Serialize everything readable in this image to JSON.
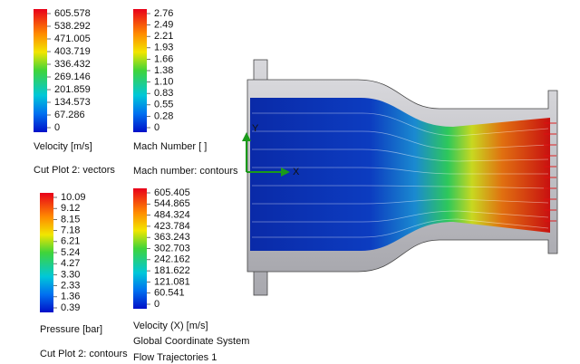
{
  "legends": [
    {
      "title": "Velocity [m/s]",
      "captions": [
        "Cut Plot 2: vectors"
      ],
      "ticks": [
        "605.578",
        "538.292",
        "471.005",
        "403.719",
        "336.432",
        "269.146",
        "201.859",
        "134.573",
        "67.286",
        "0"
      ]
    },
    {
      "title": "Mach Number [ ]",
      "captions": [
        "Mach number: contours"
      ],
      "ticks": [
        "2.76",
        "2.49",
        "2.21",
        "1.93",
        "1.66",
        "1.38",
        "1.10",
        "0.83",
        "0.55",
        "0.28",
        "0"
      ]
    },
    {
      "title": "Pressure [bar]",
      "captions": [
        "Cut Plot 2: contours"
      ],
      "ticks": [
        "10.09",
        "9.12",
        "8.15",
        "7.18",
        "6.21",
        "5.24",
        "4.27",
        "3.30",
        "2.33",
        "1.36",
        "0.39"
      ]
    },
    {
      "title": "Velocity (X) [m/s]",
      "captions": [
        "Global Coordinate System",
        "Flow Trajectories 1"
      ],
      "ticks": [
        "605.405",
        "544.865",
        "484.324",
        "423.784",
        "363.243",
        "302.703",
        "242.162",
        "181.622",
        "121.081",
        "60.541",
        "0"
      ]
    }
  ],
  "axes_triad": {
    "x": "X",
    "y": "Y"
  }
}
